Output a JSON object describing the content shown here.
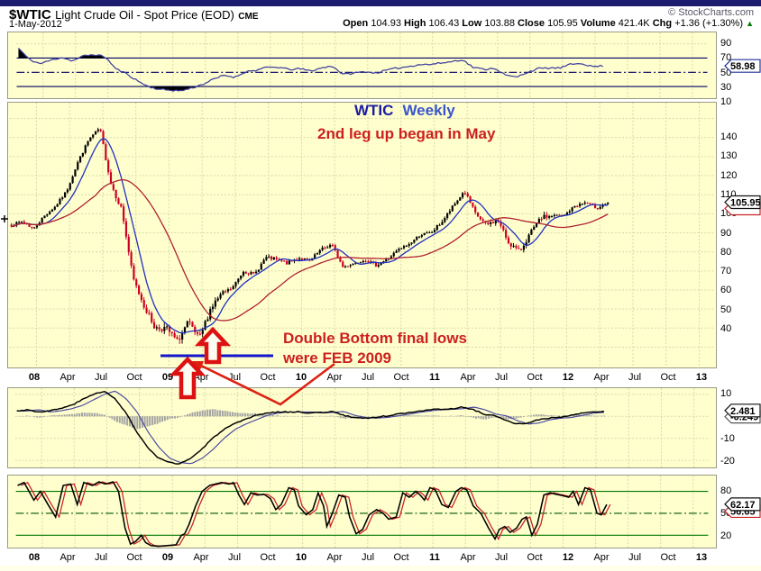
{
  "header": {
    "symbol": "$WTIC",
    "title": "Light Crude Oil - Spot Price (EOD)",
    "exchange": "CME",
    "credit": "© StockCharts.com",
    "date": "1-May-2012",
    "quote": {
      "open_label": "Open",
      "open": "104.93",
      "high_label": "High",
      "high": "106.43",
      "low_label": "Low",
      "low": "103.88",
      "close_label": "Close",
      "close": "105.95",
      "volume_label": "Volume",
      "volume": "421.4K",
      "chg_label": "Chg",
      "chg": "+1.36 (+1.30%)",
      "chg_arrow": "▲"
    }
  },
  "annotations": {
    "line1_part1": "WTIC",
    "line1_part2": "Weekly",
    "line2": "2nd leg up began in May",
    "double_bottom_line1": "Double Bottom final lows",
    "double_bottom_line2": "were FEB 2009"
  },
  "badges": {
    "rsi": "58.98",
    "price": "105.95",
    "macd_line": "2.481",
    "macd_secondary": "-0.249",
    "stoch_k": "62.17",
    "stoch_d": "56.65"
  },
  "axes": {
    "x_labels": [
      "08",
      "Apr",
      "Jul",
      "Oct",
      "09",
      "Apr",
      "Jul",
      "Oct",
      "10",
      "Apr",
      "Jul",
      "Oct",
      "11",
      "Apr",
      "Jul",
      "Oct",
      "12",
      "Apr",
      "Jul",
      "Oct",
      "13"
    ],
    "x_year_flags": [
      1,
      0,
      0,
      0,
      1,
      0,
      0,
      0,
      1,
      0,
      0,
      0,
      1,
      0,
      0,
      0,
      1,
      0,
      0,
      0,
      1
    ],
    "price_ticks": [
      140,
      130,
      120,
      110,
      100,
      90,
      80,
      70,
      60,
      50,
      40
    ],
    "rsi_ticks": [
      90,
      70,
      50,
      30,
      10
    ],
    "macd_ticks": [
      10,
      -10,
      -20
    ],
    "stoch_ticks": [
      80,
      50,
      20
    ]
  },
  "colors": {
    "panel_bg": "#ffffce",
    "grid": "#d6d6a8",
    "candle_up": "#000000",
    "candle_down": "#cc0022",
    "ma_fast": "#2030c0",
    "ma_slow": "#b02030",
    "rsi_line": "#4040a0",
    "navy_level": "#000066",
    "macd_line": "#000000",
    "macd_signal": "#4a4aa0",
    "hist_fill": "#5a5a82",
    "stoch_k": "#000000",
    "stoch_d": "#cc2222",
    "green_level": "#007700",
    "support_line": "#1515cc",
    "arrow_red": "#dd2211"
  },
  "chart_data": [
    {
      "panel": "momentum_oscillator_top",
      "type": "line",
      "ylim": [
        0,
        100
      ],
      "y_ticks": [
        90,
        70,
        50,
        30,
        10
      ],
      "overbought_level": 70,
      "oversold_level": 30,
      "mid_level": 50,
      "last_value": 58.98,
      "points_monthly": [
        [
          "2007-11",
          84
        ],
        [
          "2007-12",
          68
        ],
        [
          "2008-01",
          62
        ],
        [
          "2008-02",
          67
        ],
        [
          "2008-03",
          71
        ],
        [
          "2008-04",
          66
        ],
        [
          "2008-05",
          73
        ],
        [
          "2008-06",
          75
        ],
        [
          "2008-07",
          72
        ],
        [
          "2008-08",
          55
        ],
        [
          "2008-09",
          48
        ],
        [
          "2008-10",
          38
        ],
        [
          "2008-11",
          30
        ],
        [
          "2008-12",
          26
        ],
        [
          "2009-01",
          25
        ],
        [
          "2009-02",
          24
        ],
        [
          "2009-03",
          28
        ],
        [
          "2009-04",
          33
        ],
        [
          "2009-05",
          40
        ],
        [
          "2009-06",
          46
        ],
        [
          "2009-07",
          43
        ],
        [
          "2009-08",
          51
        ],
        [
          "2009-09",
          53
        ],
        [
          "2009-10",
          57
        ],
        [
          "2009-11",
          57
        ],
        [
          "2009-12",
          54
        ],
        [
          "2010-01",
          55
        ],
        [
          "2010-02",
          52
        ],
        [
          "2010-03",
          56
        ],
        [
          "2010-04",
          59
        ],
        [
          "2010-05",
          47
        ],
        [
          "2010-06",
          49
        ],
        [
          "2010-07",
          51
        ],
        [
          "2010-08",
          49
        ],
        [
          "2010-09",
          53
        ],
        [
          "2010-10",
          56
        ],
        [
          "2010-11",
          58
        ],
        [
          "2010-12",
          61
        ],
        [
          "2011-01",
          61
        ],
        [
          "2011-02",
          63
        ],
        [
          "2011-03",
          65
        ],
        [
          "2011-04",
          68
        ],
        [
          "2011-05",
          57
        ],
        [
          "2011-06",
          54
        ],
        [
          "2011-07",
          56
        ],
        [
          "2011-08",
          46
        ],
        [
          "2011-09",
          43
        ],
        [
          "2011-10",
          50
        ],
        [
          "2011-11",
          55
        ],
        [
          "2011-12",
          56
        ],
        [
          "2012-01",
          56
        ],
        [
          "2012-02",
          61
        ],
        [
          "2012-03",
          63
        ],
        [
          "2012-04",
          58
        ],
        [
          "2012-05",
          58.98
        ]
      ]
    },
    {
      "panel": "price_main",
      "type": "candlestick",
      "title": "WTIC Weekly",
      "ylim": [
        20,
        158
      ],
      "y_ticks": [
        140,
        130,
        120,
        110,
        100,
        90,
        80,
        70,
        60,
        50,
        40
      ],
      "ohlc_shown": {
        "open": 104.93,
        "high": 106.43,
        "low": 103.88,
        "close": 105.95
      },
      "last_close": 105.95,
      "close_anchors_monthly": [
        [
          "2007-11",
          94
        ],
        [
          "2007-12",
          96
        ],
        [
          "2008-01",
          92
        ],
        [
          "2008-02",
          99
        ],
        [
          "2008-03",
          104
        ],
        [
          "2008-04",
          112
        ],
        [
          "2008-05",
          127
        ],
        [
          "2008-06",
          139
        ],
        [
          "2008-07",
          145
        ],
        [
          "2008-08",
          116
        ],
        [
          "2008-09",
          102
        ],
        [
          "2008-10",
          66
        ],
        [
          "2008-11",
          52
        ],
        [
          "2008-12",
          40
        ],
        [
          "2009-01",
          40
        ],
        [
          "2009-02",
          33
        ],
        [
          "2009-03",
          43
        ],
        [
          "2009-04",
          34
        ],
        [
          "2009-05",
          50
        ],
        [
          "2009-06",
          58
        ],
        [
          "2009-07",
          61
        ],
        [
          "2009-08",
          70
        ],
        [
          "2009-09",
          68
        ],
        [
          "2009-10",
          77
        ],
        [
          "2009-11",
          76
        ],
        [
          "2009-12",
          74
        ],
        [
          "2010-01",
          77
        ],
        [
          "2010-02",
          75
        ],
        [
          "2010-03",
          81
        ],
        [
          "2010-04",
          84
        ],
        [
          "2010-05",
          72
        ],
        [
          "2010-06",
          74
        ],
        [
          "2010-07",
          76
        ],
        [
          "2010-08",
          73
        ],
        [
          "2010-09",
          76
        ],
        [
          "2010-10",
          81
        ],
        [
          "2010-11",
          84
        ],
        [
          "2010-12",
          89
        ],
        [
          "2011-01",
          90
        ],
        [
          "2011-02",
          96
        ],
        [
          "2011-03",
          104
        ],
        [
          "2011-04",
          112
        ],
        [
          "2011-05",
          100
        ],
        [
          "2011-06",
          94
        ],
        [
          "2011-07",
          97
        ],
        [
          "2011-08",
          85
        ],
        [
          "2011-09",
          80
        ],
        [
          "2011-10",
          90
        ],
        [
          "2011-11",
          98
        ],
        [
          "2011-12",
          99
        ],
        [
          "2012-01",
          99
        ],
        [
          "2012-02",
          104
        ],
        [
          "2012-03",
          106
        ],
        [
          "2012-04",
          103
        ],
        [
          "2012-05",
          105.95
        ]
      ],
      "overlays": [
        {
          "name": "fast_moving_average",
          "window_weeks": 9
        },
        {
          "name": "slow_moving_average",
          "window_weeks": 34
        }
      ],
      "support_line_note": "horizontal support at double-bottom final lows, FEB 2009"
    },
    {
      "panel": "macd",
      "type": "line+histogram",
      "y_ticks": [
        10,
        -10,
        -20
      ],
      "last_values": {
        "line": 2.481,
        "secondary": -0.249
      },
      "line_anchors_monthly": [
        [
          "2007-11",
          2.5
        ],
        [
          "2007-12",
          3
        ],
        [
          "2008-01",
          2
        ],
        [
          "2008-02",
          2.5
        ],
        [
          "2008-03",
          3.5
        ],
        [
          "2008-04",
          5
        ],
        [
          "2008-05",
          7.5
        ],
        [
          "2008-06",
          10
        ],
        [
          "2008-07",
          11.5
        ],
        [
          "2008-08",
          8
        ],
        [
          "2008-09",
          2
        ],
        [
          "2008-10",
          -7
        ],
        [
          "2008-11",
          -14
        ],
        [
          "2008-12",
          -19
        ],
        [
          "2009-01",
          -21
        ],
        [
          "2009-02",
          -21.5
        ],
        [
          "2009-03",
          -19
        ],
        [
          "2009-04",
          -15
        ],
        [
          "2009-05",
          -10
        ],
        [
          "2009-06",
          -6
        ],
        [
          "2009-07",
          -3.5
        ],
        [
          "2009-08",
          -1.5
        ],
        [
          "2009-09",
          0.5
        ],
        [
          "2009-10",
          1.5
        ],
        [
          "2009-11",
          2
        ],
        [
          "2009-12",
          2
        ],
        [
          "2010-01",
          2
        ],
        [
          "2010-02",
          1.5
        ],
        [
          "2010-03",
          1.8
        ],
        [
          "2010-04",
          2.2
        ],
        [
          "2010-05",
          0.5
        ],
        [
          "2010-06",
          -0.5
        ],
        [
          "2010-07",
          -0.8
        ],
        [
          "2010-08",
          -0.5
        ],
        [
          "2010-09",
          0.2
        ],
        [
          "2010-10",
          1
        ],
        [
          "2010-11",
          1.8
        ],
        [
          "2010-12",
          2.5
        ],
        [
          "2011-01",
          3
        ],
        [
          "2011-02",
          3.2
        ],
        [
          "2011-03",
          3.5
        ],
        [
          "2011-04",
          4.2
        ],
        [
          "2011-05",
          3
        ],
        [
          "2011-06",
          1
        ],
        [
          "2011-07",
          0.2
        ],
        [
          "2011-08",
          -2
        ],
        [
          "2011-09",
          -3.5
        ],
        [
          "2011-10",
          -3
        ],
        [
          "2011-11",
          -1.5
        ],
        [
          "2011-12",
          -0.8
        ],
        [
          "2012-01",
          -0.5
        ],
        [
          "2012-02",
          0.5
        ],
        [
          "2012-03",
          1.5
        ],
        [
          "2012-04",
          1.8
        ],
        [
          "2012-05",
          2.481
        ]
      ]
    },
    {
      "panel": "stochastic_bottom",
      "type": "line",
      "ylim": [
        0,
        100
      ],
      "y_ticks": [
        80,
        50,
        20
      ],
      "upper_level": 80,
      "mid_level": 50,
      "lower_level": 20,
      "last_values": {
        "k": 62.17,
        "d": 56.65
      },
      "points_months_since_2007_11": [
        [
          0,
          88
        ],
        [
          0.6,
          92
        ],
        [
          1.5,
          68
        ],
        [
          2.1,
          80
        ],
        [
          2.8,
          62
        ],
        [
          3.5,
          45
        ],
        [
          4.2,
          88
        ],
        [
          4.9,
          90
        ],
        [
          5.5,
          62
        ],
        [
          6.1,
          92
        ],
        [
          6.9,
          88
        ],
        [
          7.5,
          93
        ],
        [
          8.1,
          90
        ],
        [
          8.8,
          93
        ],
        [
          9.3,
          80
        ],
        [
          9.9,
          30
        ],
        [
          10.4,
          8
        ],
        [
          10.9,
          12
        ],
        [
          11.4,
          20
        ],
        [
          11.8,
          10
        ],
        [
          12.3,
          6
        ],
        [
          13,
          5
        ],
        [
          13.8,
          6
        ],
        [
          14.6,
          7
        ],
        [
          15.1,
          20
        ],
        [
          15.4,
          22
        ],
        [
          15.8,
          35
        ],
        [
          16.4,
          60
        ],
        [
          17,
          80
        ],
        [
          17.7,
          88
        ],
        [
          18.2,
          90
        ],
        [
          18.8,
          92
        ],
        [
          19.5,
          90
        ],
        [
          19.9,
          92
        ],
        [
          20.4,
          75
        ],
        [
          20.9,
          62
        ],
        [
          21.5,
          78
        ],
        [
          22.1,
          75
        ],
        [
          22.7,
          76
        ],
        [
          23.3,
          70
        ],
        [
          23.8,
          55
        ],
        [
          24.3,
          62
        ],
        [
          25,
          85
        ],
        [
          25.5,
          82
        ],
        [
          25.9,
          60
        ],
        [
          26.6,
          48
        ],
        [
          27.2,
          55
        ],
        [
          27.7,
          78
        ],
        [
          28.2,
          60
        ],
        [
          28.5,
          32
        ],
        [
          29,
          50
        ],
        [
          29.6,
          75
        ],
        [
          30.2,
          72
        ],
        [
          30.6,
          45
        ],
        [
          31.2,
          22
        ],
        [
          31.8,
          28
        ],
        [
          32.4,
          48
        ],
        [
          33.1,
          55
        ],
        [
          33.7,
          50
        ],
        [
          34.2,
          42
        ],
        [
          34.9,
          45
        ],
        [
          35.5,
          78
        ],
        [
          36.1,
          72
        ],
        [
          36.7,
          80
        ],
        [
          37.1,
          75
        ],
        [
          37.5,
          68
        ],
        [
          38,
          85
        ],
        [
          38.5,
          82
        ],
        [
          39.1,
          62
        ],
        [
          39.7,
          58
        ],
        [
          40.4,
          80
        ],
        [
          40.9,
          85
        ],
        [
          41.4,
          82
        ],
        [
          42,
          60
        ],
        [
          42.7,
          50
        ],
        [
          43.4,
          30
        ],
        [
          44,
          15
        ],
        [
          44.4,
          28
        ],
        [
          44.9,
          32
        ],
        [
          45.4,
          24
        ],
        [
          46,
          30
        ],
        [
          46.5,
          42
        ],
        [
          46.9,
          45
        ],
        [
          47.4,
          20
        ],
        [
          47.9,
          35
        ],
        [
          48.5,
          75
        ],
        [
          49.1,
          78
        ],
        [
          49.6,
          76
        ],
        [
          50.3,
          74
        ],
        [
          50.8,
          72
        ],
        [
          51.2,
          80
        ],
        [
          51.7,
          62
        ],
        [
          52.3,
          85
        ],
        [
          52.8,
          82
        ],
        [
          53.4,
          50
        ],
        [
          53.8,
          48
        ],
        [
          54.3,
          62.17
        ]
      ]
    }
  ],
  "cursor_artifact": "+"
}
